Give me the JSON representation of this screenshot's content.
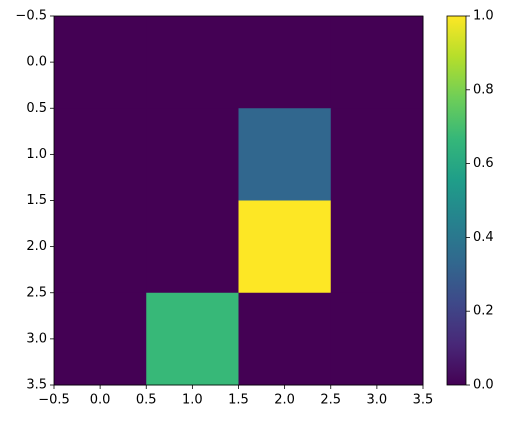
{
  "chart_data": {
    "type": "heatmap",
    "colormap": "viridis",
    "z": [
      [
        0,
        0,
        0,
        0
      ],
      [
        0,
        0,
        0.33,
        0
      ],
      [
        0,
        0,
        1,
        0
      ],
      [
        0,
        0.67,
        0,
        0
      ]
    ],
    "xlim": [
      -0.5,
      3.5
    ],
    "ylim": [
      3.5,
      -0.5
    ],
    "xticks": [
      {
        "value": -0.5,
        "label": "−0.5"
      },
      {
        "value": 0,
        "label": "0.0"
      },
      0.5,
      {
        "value": 1,
        "label": "1.0"
      },
      1.5,
      {
        "value": 2,
        "label": "2.0"
      },
      2.5,
      {
        "value": 3,
        "label": "3.0"
      },
      3.5
    ],
    "yticks": [
      {
        "value": -0.5,
        "label": "−0.5"
      },
      {
        "value": 0,
        "label": "0.0"
      },
      0.5,
      {
        "value": 1,
        "label": "1.0"
      },
      1.5,
      {
        "value": 2,
        "label": "2.0"
      },
      2.5,
      {
        "value": 3,
        "label": "3.0"
      },
      3.5
    ],
    "colorbar": {
      "lim": [
        0,
        1
      ],
      "ticks": [
        {
          "value": 0,
          "label": "0.0"
        },
        0.2,
        0.4,
        0.6,
        0.8,
        {
          "value": 1,
          "label": "1.0"
        }
      ]
    }
  }
}
